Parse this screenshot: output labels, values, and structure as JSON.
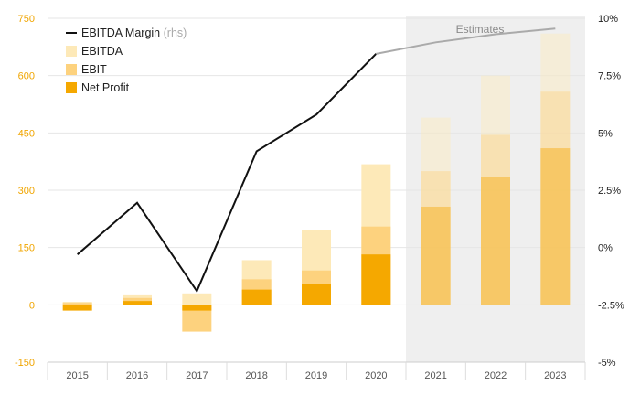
{
  "chart_data": {
    "type": "bar",
    "categories": [
      "2015",
      "2016",
      "2017",
      "2018",
      "2019",
      "2020",
      "2021",
      "2022",
      "2023"
    ],
    "estimate_categories": [
      "2021",
      "2022",
      "2023"
    ],
    "annotation": "Estimates",
    "y_left": {
      "ylim": [
        -150,
        750
      ],
      "ticks": [
        "-150",
        "0",
        "150",
        "300",
        "450",
        "600",
        "750"
      ],
      "color": "#f0a500"
    },
    "y_right": {
      "ylim": [
        -5,
        10
      ],
      "ticks": [
        "-5%",
        "-2.5%",
        "0%",
        "2.5%",
        "5%",
        "7.5%",
        "10%"
      ]
    },
    "series": [
      {
        "name": "EBITDA",
        "color": "#fde9b8",
        "values": [
          8,
          25,
          30,
          117,
          195,
          368,
          490,
          600,
          710
        ]
      },
      {
        "name": "EBIT",
        "color": "#fdd27e",
        "values": [
          5,
          18,
          -70,
          67,
          90,
          205,
          350,
          445,
          558
        ]
      },
      {
        "name": "Net Profit",
        "color": "#f5a800",
        "values": [
          -15,
          10,
          -15,
          40,
          55,
          132,
          257,
          335,
          410
        ]
      }
    ],
    "line_series": {
      "name": "EBITDA Margin",
      "axis_note": "(rhs)",
      "color": "#111111",
      "estimate_color": "#aaaaaa",
      "values": [
        -0.3,
        1.95,
        -1.9,
        4.2,
        5.8,
        8.45,
        8.95,
        9.3,
        9.55
      ]
    },
    "legend_position": "top-left",
    "grid": true
  }
}
